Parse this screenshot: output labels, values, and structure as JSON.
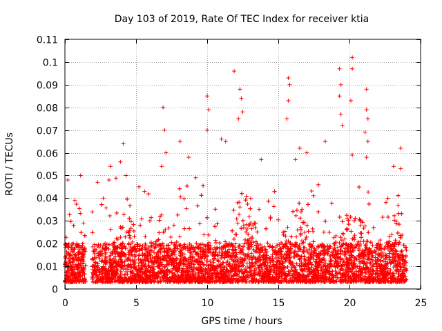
{
  "chart_data": {
    "type": "scatter",
    "title": "Day 103 of 2019, Rate Of TEC Index for receiver ktia",
    "xlabel": "GPS time / hours",
    "ylabel": "ROTI / TECUs",
    "xlim": [
      0,
      25
    ],
    "ylim": [
      0,
      0.11
    ],
    "xticks": [
      0,
      5,
      10,
      15,
      20,
      25
    ],
    "xtick_labels": [
      "0",
      "5",
      "10",
      "15",
      "20",
      "25"
    ],
    "yticks": [
      0,
      0.01,
      0.02,
      0.03,
      0.04,
      0.05,
      0.06,
      0.07,
      0.08,
      0.09,
      0.1,
      0.11
    ],
    "ytick_labels": [
      "0",
      "0.01",
      "0.02",
      "0.03",
      "0.04",
      "0.05",
      "0.06",
      "0.07",
      "0.08",
      "0.09",
      "0.1",
      "0.11"
    ],
    "grid": true,
    "marker": "+",
    "color": "#ff0000",
    "series": [
      {
        "name": "ROTI",
        "x_range": [
          0,
          24
        ],
        "typical_band": [
          0.003,
          0.02
        ],
        "notable_points": [
          {
            "x": 0.2,
            "y": 0.048
          },
          {
            "x": 0.7,
            "y": 0.039
          },
          {
            "x": 1.1,
            "y": 0.05
          },
          {
            "x": 1.3,
            "y": 0.029
          },
          {
            "x": 2.3,
            "y": 0.047
          },
          {
            "x": 2.7,
            "y": 0.04
          },
          {
            "x": 3.1,
            "y": 0.048
          },
          {
            "x": 3.2,
            "y": 0.054
          },
          {
            "x": 3.9,
            "y": 0.056
          },
          {
            "x": 4.1,
            "y": 0.064
          },
          {
            "x": 4.3,
            "y": 0.05
          },
          {
            "x": 5.2,
            "y": 0.045
          },
          {
            "x": 6.9,
            "y": 0.08
          },
          {
            "x": 7.0,
            "y": 0.07
          },
          {
            "x": 6.8,
            "y": 0.054
          },
          {
            "x": 7.1,
            "y": 0.06
          },
          {
            "x": 8.1,
            "y": 0.065
          },
          {
            "x": 8.7,
            "y": 0.058
          },
          {
            "x": 9.2,
            "y": 0.049
          },
          {
            "x": 10.0,
            "y": 0.085
          },
          {
            "x": 10.1,
            "y": 0.079
          },
          {
            "x": 10.0,
            "y": 0.07
          },
          {
            "x": 11.0,
            "y": 0.066
          },
          {
            "x": 11.3,
            "y": 0.065
          },
          {
            "x": 11.9,
            "y": 0.096
          },
          {
            "x": 12.3,
            "y": 0.088
          },
          {
            "x": 12.4,
            "y": 0.084
          },
          {
            "x": 12.5,
            "y": 0.078
          },
          {
            "x": 12.2,
            "y": 0.075
          },
          {
            "x": 13.8,
            "y": 0.057
          },
          {
            "x": 15.7,
            "y": 0.093
          },
          {
            "x": 15.8,
            "y": 0.09
          },
          {
            "x": 15.7,
            "y": 0.083
          },
          {
            "x": 15.6,
            "y": 0.075
          },
          {
            "x": 16.2,
            "y": 0.057
          },
          {
            "x": 16.5,
            "y": 0.062
          },
          {
            "x": 17.0,
            "y": 0.06
          },
          {
            "x": 18.3,
            "y": 0.065
          },
          {
            "x": 19.3,
            "y": 0.097
          },
          {
            "x": 19.4,
            "y": 0.09
          },
          {
            "x": 19.3,
            "y": 0.085
          },
          {
            "x": 19.4,
            "y": 0.077
          },
          {
            "x": 19.5,
            "y": 0.072
          },
          {
            "x": 20.2,
            "y": 0.102
          },
          {
            "x": 20.2,
            "y": 0.097
          },
          {
            "x": 20.1,
            "y": 0.083
          },
          {
            "x": 20.2,
            "y": 0.059
          },
          {
            "x": 21.2,
            "y": 0.088
          },
          {
            "x": 21.2,
            "y": 0.079
          },
          {
            "x": 21.3,
            "y": 0.075
          },
          {
            "x": 21.1,
            "y": 0.069
          },
          {
            "x": 21.3,
            "y": 0.065
          },
          {
            "x": 21.2,
            "y": 0.058
          },
          {
            "x": 23.6,
            "y": 0.062
          },
          {
            "x": 23.1,
            "y": 0.054
          },
          {
            "x": 23.6,
            "y": 0.053
          }
        ]
      }
    ]
  }
}
